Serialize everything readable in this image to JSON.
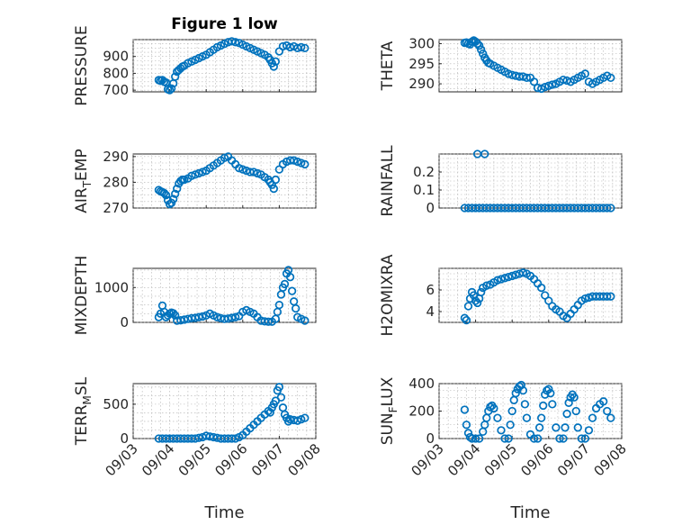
{
  "figure_title": "Figure 1 low",
  "marker_color": "#0072BD",
  "xlabel": "Time",
  "x_ticks": [
    "09/03",
    "09/04",
    "09/05",
    "09/06",
    "09/07",
    "09/08"
  ],
  "chart_data": [
    {
      "type": "scatter",
      "title": "Figure 1 low",
      "ylabel": "PRESSURE",
      "xlabel": "",
      "x_ticks": [
        "09/03",
        "09/04",
        "09/05",
        "09/06",
        "09/07",
        "09/08"
      ],
      "ylim": [
        690,
        1000
      ],
      "yticks": [
        700,
        800,
        900
      ],
      "grid": true,
      "x": [
        3.7,
        3.75,
        3.8,
        3.85,
        3.9,
        3.95,
        4.0,
        4.05,
        4.1,
        4.15,
        4.2,
        4.25,
        4.3,
        4.35,
        4.4,
        4.5,
        4.6,
        4.7,
        4.8,
        4.9,
        5.0,
        5.1,
        5.2,
        5.3,
        5.4,
        5.5,
        5.6,
        5.7,
        5.8,
        5.9,
        6.0,
        6.1,
        6.2,
        6.3,
        6.4,
        6.5,
        6.6,
        6.7,
        6.75,
        6.8,
        6.85,
        6.9,
        7.0,
        7.1,
        7.2,
        7.3,
        7.4,
        7.5,
        7.6,
        7.7
      ],
      "y": [
        760,
        755,
        760,
        750,
        745,
        705,
        700,
        710,
        740,
        780,
        810,
        820,
        830,
        840,
        845,
        860,
        870,
        880,
        890,
        900,
        910,
        925,
        940,
        955,
        965,
        975,
        985,
        990,
        985,
        980,
        970,
        960,
        950,
        940,
        930,
        920,
        910,
        895,
        880,
        860,
        840,
        870,
        930,
        960,
        965,
        955,
        960,
        950,
        955,
        950
      ]
    },
    {
      "type": "scatter",
      "ylabel": "THETA",
      "xlabel": "",
      "x_ticks": [
        "09/03",
        "09/04",
        "09/05",
        "09/06",
        "09/07",
        "09/08"
      ],
      "ylim": [
        288,
        301
      ],
      "yticks": [
        290,
        295,
        300
      ],
      "grid": true,
      "x": [
        3.7,
        3.75,
        3.8,
        3.85,
        3.9,
        3.95,
        4.0,
        4.05,
        4.1,
        4.15,
        4.2,
        4.25,
        4.3,
        4.35,
        4.4,
        4.5,
        4.6,
        4.7,
        4.8,
        4.9,
        5.0,
        5.1,
        5.2,
        5.3,
        5.4,
        5.5,
        5.6,
        5.7,
        5.8,
        5.9,
        6.0,
        6.1,
        6.2,
        6.3,
        6.4,
        6.5,
        6.6,
        6.7,
        6.8,
        6.9,
        7.0,
        7.1,
        7.2,
        7.3,
        7.4,
        7.5,
        7.6,
        7.7
      ],
      "y": [
        300.2,
        300.3,
        300.0,
        299.8,
        300.5,
        300.8,
        300.5,
        300.0,
        299.5,
        298.5,
        297.5,
        296.5,
        295.8,
        295.2,
        295.0,
        294.5,
        294.0,
        293.5,
        293.0,
        292.5,
        292.2,
        292.0,
        291.8,
        291.8,
        291.5,
        291.5,
        290.5,
        289.0,
        288.8,
        289.2,
        289.5,
        289.8,
        290.0,
        290.5,
        291.0,
        290.8,
        290.5,
        291.0,
        291.5,
        292.0,
        292.5,
        290.5,
        290.0,
        290.5,
        291.0,
        291.5,
        292.0,
        291.5
      ]
    },
    {
      "type": "scatter",
      "ylabel": "AIR_TEMP",
      "xlabel": "",
      "x_ticks": [
        "09/03",
        "09/04",
        "09/05",
        "09/06",
        "09/07",
        "09/08"
      ],
      "ylim": [
        270,
        291
      ],
      "yticks": [
        270,
        280,
        290
      ],
      "grid": true,
      "x": [
        3.7,
        3.75,
        3.8,
        3.85,
        3.9,
        3.95,
        4.0,
        4.05,
        4.1,
        4.15,
        4.2,
        4.25,
        4.3,
        4.35,
        4.4,
        4.5,
        4.6,
        4.7,
        4.8,
        4.9,
        5.0,
        5.1,
        5.2,
        5.3,
        5.4,
        5.5,
        5.6,
        5.7,
        5.8,
        5.9,
        6.0,
        6.1,
        6.2,
        6.3,
        6.4,
        6.5,
        6.6,
        6.7,
        6.75,
        6.8,
        6.85,
        6.9,
        7.0,
        7.1,
        7.2,
        7.3,
        7.4,
        7.5,
        7.6,
        7.7
      ],
      "y": [
        277,
        276.5,
        276.2,
        275.8,
        275,
        273,
        271.5,
        272,
        273.5,
        275.5,
        277.5,
        279.5,
        280.5,
        281,
        281,
        281.5,
        282.5,
        283,
        283.5,
        284,
        284.5,
        285.5,
        286.5,
        287.5,
        288.5,
        289.5,
        290,
        288.5,
        287,
        285.5,
        285,
        284.5,
        284,
        284,
        283.5,
        283,
        282,
        281,
        280,
        279,
        277.5,
        281,
        285,
        287,
        288,
        288.5,
        288.5,
        288,
        287.5,
        287
      ]
    },
    {
      "type": "scatter",
      "ylabel": "RAINFALL",
      "xlabel": "",
      "x_ticks": [
        "09/03",
        "09/04",
        "09/05",
        "09/06",
        "09/07",
        "09/08"
      ],
      "ylim": [
        0,
        0.3
      ],
      "yticks": [
        0,
        0.1,
        0.2
      ],
      "grid": true,
      "x": [
        3.7,
        3.8,
        3.9,
        4.0,
        4.1,
        4.2,
        4.3,
        4.4,
        4.5,
        4.6,
        4.7,
        4.8,
        4.9,
        5.0,
        5.1,
        5.2,
        5.3,
        5.4,
        5.5,
        5.6,
        5.7,
        5.8,
        5.9,
        6.0,
        6.1,
        6.2,
        6.3,
        6.4,
        6.5,
        6.6,
        6.7,
        6.8,
        6.9,
        7.0,
        7.1,
        7.2,
        7.3,
        7.4,
        7.5,
        7.6,
        7.7,
        4.05,
        4.25
      ],
      "y": [
        0,
        0,
        0,
        0,
        0,
        0,
        0,
        0,
        0,
        0,
        0,
        0,
        0,
        0,
        0,
        0,
        0,
        0,
        0,
        0,
        0,
        0,
        0,
        0,
        0,
        0,
        0,
        0,
        0,
        0,
        0,
        0,
        0,
        0,
        0,
        0,
        0,
        0,
        0,
        0,
        0,
        0.3,
        0.3
      ]
    },
    {
      "type": "scatter",
      "ylabel": "MIXDEPTH",
      "xlabel": "",
      "x_ticks": [
        "09/03",
        "09/04",
        "09/05",
        "09/06",
        "09/07",
        "09/08"
      ],
      "ylim": [
        0,
        1550
      ],
      "yticks": [
        0,
        1000
      ],
      "grid": true,
      "x": [
        3.7,
        3.75,
        3.8,
        3.85,
        3.9,
        3.95,
        4.0,
        4.05,
        4.1,
        4.15,
        4.2,
        4.3,
        4.4,
        4.5,
        4.6,
        4.7,
        4.8,
        4.9,
        5.0,
        5.1,
        5.2,
        5.3,
        5.4,
        5.5,
        5.6,
        5.7,
        5.8,
        5.9,
        6.0,
        6.1,
        6.2,
        6.3,
        6.4,
        6.5,
        6.6,
        6.7,
        6.8,
        6.9,
        6.95,
        7.0,
        7.05,
        7.1,
        7.15,
        7.2,
        7.25,
        7.3,
        7.35,
        7.4,
        7.45,
        7.5,
        7.6,
        7.7
      ],
      "y": [
        150,
        250,
        480,
        300,
        150,
        200,
        250,
        280,
        260,
        200,
        50,
        60,
        80,
        100,
        120,
        130,
        150,
        170,
        200,
        250,
        200,
        150,
        120,
        100,
        110,
        130,
        150,
        180,
        300,
        350,
        300,
        250,
        150,
        50,
        30,
        20,
        20,
        100,
        300,
        500,
        800,
        1000,
        1100,
        1400,
        1500,
        1300,
        900,
        600,
        400,
        150,
        100,
        50
      ]
    },
    {
      "type": "scatter",
      "ylabel": "H2OMIXRA",
      "xlabel": "",
      "x_ticks": [
        "09/03",
        "09/04",
        "09/05",
        "09/06",
        "09/07",
        "09/08"
      ],
      "ylim": [
        3,
        8
      ],
      "yticks": [
        4,
        6
      ],
      "grid": true,
      "x": [
        3.7,
        3.75,
        3.8,
        3.85,
        3.9,
        3.95,
        4.0,
        4.05,
        4.1,
        4.15,
        4.2,
        4.3,
        4.4,
        4.5,
        4.6,
        4.7,
        4.8,
        4.9,
        5.0,
        5.1,
        5.2,
        5.3,
        5.4,
        5.5,
        5.6,
        5.7,
        5.8,
        5.9,
        6.0,
        6.1,
        6.2,
        6.3,
        6.4,
        6.5,
        6.6,
        6.7,
        6.8,
        6.9,
        7.0,
        7.1,
        7.2,
        7.3,
        7.4,
        7.5,
        7.6,
        7.7
      ],
      "y": [
        3.4,
        3.2,
        4.5,
        5.2,
        5.8,
        5.5,
        5.0,
        4.8,
        5.2,
        5.8,
        6.2,
        6.4,
        6.5,
        6.7,
        6.9,
        7.0,
        7.1,
        7.2,
        7.3,
        7.4,
        7.5,
        7.6,
        7.5,
        7.3,
        7.0,
        6.6,
        6.2,
        5.5,
        5.0,
        4.5,
        4.2,
        4.0,
        3.6,
        3.4,
        3.8,
        4.2,
        4.6,
        5.0,
        5.2,
        5.3,
        5.4,
        5.4,
        5.4,
        5.4,
        5.4,
        5.4
      ]
    },
    {
      "type": "scatter",
      "ylabel": "TERR_MSL",
      "xlabel": "Time",
      "x_ticks": [
        "09/03",
        "09/04",
        "09/05",
        "09/06",
        "09/07",
        "09/08"
      ],
      "ylim": [
        0,
        800
      ],
      "yticks": [
        0,
        500
      ],
      "grid": true,
      "x": [
        3.7,
        3.8,
        3.9,
        4.0,
        4.1,
        4.2,
        4.3,
        4.4,
        4.5,
        4.6,
        4.7,
        4.8,
        4.9,
        5.0,
        5.1,
        5.2,
        5.3,
        5.4,
        5.5,
        5.6,
        5.7,
        5.8,
        5.9,
        6.0,
        6.1,
        6.2,
        6.3,
        6.4,
        6.5,
        6.6,
        6.7,
        6.75,
        6.8,
        6.85,
        6.9,
        6.95,
        7.0,
        7.05,
        7.1,
        7.15,
        7.2,
        7.25,
        7.3,
        7.4,
        7.5,
        7.6,
        7.7
      ],
      "y": [
        0,
        0,
        0,
        0,
        0,
        0,
        0,
        0,
        0,
        0,
        0,
        10,
        20,
        40,
        30,
        20,
        10,
        0,
        0,
        0,
        0,
        0,
        20,
        50,
        100,
        150,
        200,
        250,
        300,
        350,
        400,
        380,
        450,
        500,
        550,
        700,
        750,
        600,
        450,
        350,
        300,
        250,
        280,
        270,
        260,
        280,
        300
      ]
    },
    {
      "type": "scatter",
      "ylabel": "SUN_FLUX",
      "xlabel": "Time",
      "x_ticks": [
        "09/03",
        "09/04",
        "09/05",
        "09/06",
        "09/07",
        "09/08"
      ],
      "ylim": [
        0,
        400
      ],
      "yticks": [
        0,
        200,
        400
      ],
      "grid": true,
      "x": [
        3.7,
        3.75,
        3.8,
        3.85,
        3.9,
        4.0,
        4.1,
        4.2,
        4.25,
        4.3,
        4.35,
        4.4,
        4.45,
        4.5,
        4.6,
        4.7,
        4.8,
        4.9,
        4.95,
        5.0,
        5.05,
        5.1,
        5.15,
        5.2,
        5.25,
        5.3,
        5.35,
        5.4,
        5.5,
        5.6,
        5.7,
        5.75,
        5.8,
        5.85,
        5.9,
        5.95,
        6.0,
        6.05,
        6.1,
        6.2,
        6.3,
        6.4,
        6.45,
        6.5,
        6.55,
        6.6,
        6.65,
        6.7,
        6.75,
        6.8,
        6.9,
        7.0,
        7.1,
        7.2,
        7.3,
        7.4,
        7.5,
        7.6,
        7.7
      ],
      "y": [
        210,
        100,
        40,
        10,
        0,
        0,
        0,
        50,
        100,
        150,
        200,
        230,
        240,
        220,
        150,
        60,
        0,
        0,
        100,
        200,
        280,
        330,
        360,
        380,
        390,
        350,
        250,
        150,
        30,
        0,
        0,
        80,
        150,
        240,
        320,
        350,
        360,
        330,
        250,
        80,
        0,
        0,
        80,
        180,
        260,
        300,
        320,
        300,
        200,
        80,
        0,
        0,
        60,
        150,
        220,
        250,
        270,
        200,
        150
      ]
    }
  ]
}
